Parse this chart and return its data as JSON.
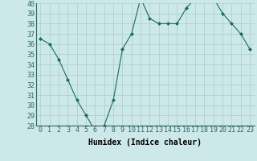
{
  "x": [
    0,
    1,
    2,
    3,
    4,
    5,
    6,
    7,
    8,
    9,
    10,
    11,
    12,
    13,
    14,
    15,
    16,
    17,
    18,
    19,
    20,
    21,
    22,
    23
  ],
  "y": [
    36.5,
    36.0,
    34.5,
    32.5,
    30.5,
    29.0,
    27.5,
    28.0,
    30.5,
    35.5,
    37.0,
    40.5,
    38.5,
    38.0,
    38.0,
    38.0,
    39.5,
    40.5,
    40.5,
    40.5,
    39.0,
    38.0,
    37.0,
    35.5
  ],
  "line_color": "#1a6b5a",
  "marker": "D",
  "marker_size": 2.0,
  "bg_color": "#cce8e8",
  "grid_color": "#aacccc",
  "xlabel": "Humidex (Indice chaleur)",
  "ylim": [
    28,
    40
  ],
  "xlim": [
    -0.5,
    23.5
  ],
  "yticks": [
    28,
    29,
    30,
    31,
    32,
    33,
    34,
    35,
    36,
    37,
    38,
    39,
    40
  ],
  "xticks": [
    0,
    1,
    2,
    3,
    4,
    5,
    6,
    7,
    8,
    9,
    10,
    11,
    12,
    13,
    14,
    15,
    16,
    17,
    18,
    19,
    20,
    21,
    22,
    23
  ],
  "xtick_labels": [
    "0",
    "1",
    "2",
    "3",
    "4",
    "5",
    "6",
    "7",
    "8",
    "9",
    "10",
    "11",
    "12",
    "13",
    "14",
    "15",
    "16",
    "17",
    "18",
    "19",
    "20",
    "21",
    "22",
    "23"
  ],
  "tick_fontsize": 6.0,
  "xlabel_fontsize": 7.0
}
